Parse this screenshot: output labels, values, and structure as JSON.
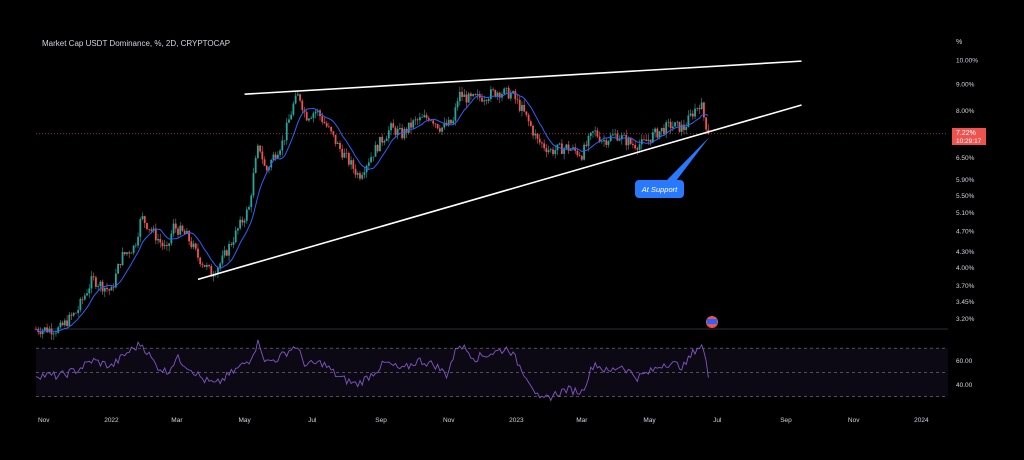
{
  "header": {
    "title": "Market Cap USDT Dominance, %, 2D, CRYPTOCAP",
    "unit": "%"
  },
  "price_tag": {
    "value": "7.22%",
    "countdown": "10:29:17"
  },
  "annotation": {
    "label": "At Support"
  },
  "colors": {
    "background": "#000000",
    "bull": "#26a69a",
    "bear": "#ef5350",
    "ma_line": "#2962ff",
    "rsi_line": "#7e57c2",
    "rsi_band": "#7e57c2",
    "trendline": "#ffffff",
    "price_tag": "#ef5350",
    "callout": "#2979ff"
  },
  "chart_data": [
    {
      "type": "candlestick",
      "title": "Market Cap USDT Dominance, %, 2D, CRYPTOCAP",
      "y_scale": "log",
      "y_ticks": [
        10.0,
        9.0,
        8.0,
        7.22,
        6.5,
        5.9,
        5.5,
        5.1,
        4.7,
        4.3,
        4.0,
        3.7,
        3.45,
        3.2
      ],
      "y_tick_labels": [
        "10.00%",
        "9.00%",
        "8.00%",
        "",
        "6.50%",
        "5.90%",
        "5.50%",
        "5.10%",
        "4.70%",
        "4.30%",
        "4.00%",
        "3.70%",
        "3.45%",
        "3.20%"
      ],
      "x_tick_labels": [
        "Nov",
        "2022",
        "Mar",
        "May",
        "Jul",
        "Sep",
        "Nov",
        "2023",
        "Mar",
        "May",
        "Jul",
        "Sep",
        "Nov",
        "2024"
      ],
      "x_ticks": [
        "2021-11-01",
        "2022-01-01",
        "2022-03-01",
        "2022-05-01",
        "2022-07-01",
        "2022-09-01",
        "2022-11-01",
        "2023-01-01",
        "2023-03-01",
        "2023-05-01",
        "2023-07-01",
        "2023-09-01",
        "2023-11-01",
        "2024-01-01"
      ],
      "x_range": [
        "2021-10-25",
        "2024-01-25"
      ],
      "last_close": 7.22,
      "series": [
        {
          "kind": "close_path",
          "points": [
            [
              "2021-10-25",
              3.05
            ],
            [
              "2021-11-15",
              3.05
            ],
            [
              "2021-12-01",
              3.3
            ],
            [
              "2021-12-15",
              3.8
            ],
            [
              "2022-01-01",
              3.6
            ],
            [
              "2022-01-10",
              4.2
            ],
            [
              "2022-01-22",
              4.4
            ],
            [
              "2022-01-28",
              5.0
            ],
            [
              "2022-02-10",
              4.6
            ],
            [
              "2022-02-20",
              4.3
            ],
            [
              "2022-02-26",
              4.8
            ],
            [
              "2022-03-10",
              4.6
            ],
            [
              "2022-03-20",
              4.2
            ],
            [
              "2022-04-01",
              3.9
            ],
            [
              "2022-04-10",
              4.1
            ],
            [
              "2022-04-22",
              4.6
            ],
            [
              "2022-05-05",
              5.2
            ],
            [
              "2022-05-10",
              6.2
            ],
            [
              "2022-05-14",
              6.9
            ],
            [
              "2022-05-20",
              6.1
            ],
            [
              "2022-05-28",
              6.6
            ],
            [
              "2022-06-05",
              7.0
            ],
            [
              "2022-06-14",
              8.2
            ],
            [
              "2022-06-19",
              8.6
            ],
            [
              "2022-06-25",
              7.8
            ],
            [
              "2022-07-05",
              8.0
            ],
            [
              "2022-07-15",
              7.4
            ],
            [
              "2022-07-25",
              6.8
            ],
            [
              "2022-08-05",
              6.3
            ],
            [
              "2022-08-12",
              6.0
            ],
            [
              "2022-08-20",
              6.4
            ],
            [
              "2022-09-01",
              7.0
            ],
            [
              "2022-09-10",
              7.4
            ],
            [
              "2022-09-20",
              7.2
            ],
            [
              "2022-10-01",
              7.6
            ],
            [
              "2022-10-15",
              7.8
            ],
            [
              "2022-10-25",
              7.4
            ],
            [
              "2022-11-05",
              7.6
            ],
            [
              "2022-11-10",
              8.6
            ],
            [
              "2022-11-20",
              8.4
            ],
            [
              "2022-12-01",
              8.5
            ],
            [
              "2022-12-15",
              8.7
            ],
            [
              "2022-12-28",
              8.6
            ],
            [
              "2023-01-08",
              7.9
            ],
            [
              "2023-01-20",
              7.0
            ],
            [
              "2023-02-01",
              6.7
            ],
            [
              "2023-02-15",
              6.8
            ],
            [
              "2023-03-01",
              6.6
            ],
            [
              "2023-03-12",
              7.3
            ],
            [
              "2023-03-20",
              7.0
            ],
            [
              "2023-04-01",
              7.2
            ],
            [
              "2023-04-15",
              6.9
            ],
            [
              "2023-04-25",
              6.9
            ],
            [
              "2023-05-05",
              7.2
            ],
            [
              "2023-05-20",
              7.5
            ],
            [
              "2023-06-01",
              7.4
            ],
            [
              "2023-06-10",
              8.0
            ],
            [
              "2023-06-16",
              8.3
            ],
            [
              "2023-06-20",
              7.6
            ],
            [
              "2023-06-24",
              7.22
            ]
          ]
        }
      ],
      "trendlines": [
        {
          "name": "",
          "from": [
            "2022-05-01",
            8.6
          ],
          "to": [
            "2023-09-15",
            9.95
          ]
        },
        {
          "name": "",
          "from": [
            "2022-03-20",
            3.8
          ],
          "to": [
            "2023-09-15",
            8.2
          ]
        }
      ]
    },
    {
      "type": "line",
      "title": "",
      "y_ticks": [
        60.0,
        40.0
      ],
      "y_tick_labels": [
        "60.00",
        "40.00"
      ],
      "band": [
        30,
        70
      ],
      "midline": 50,
      "y_range": [
        24,
        80
      ],
      "points": [
        [
          "2021-10-25",
          48
        ],
        [
          "2021-11-15",
          47
        ],
        [
          "2021-12-01",
          52
        ],
        [
          "2021-12-15",
          60
        ],
        [
          "2022-01-01",
          55
        ],
        [
          "2022-01-15",
          66
        ],
        [
          "2022-01-28",
          74
        ],
        [
          "2022-02-10",
          56
        ],
        [
          "2022-02-20",
          50
        ],
        [
          "2022-03-01",
          62
        ],
        [
          "2022-03-15",
          52
        ],
        [
          "2022-03-25",
          44
        ],
        [
          "2022-04-05",
          40
        ],
        [
          "2022-04-20",
          50
        ],
        [
          "2022-05-05",
          60
        ],
        [
          "2022-05-14",
          76
        ],
        [
          "2022-05-20",
          58
        ],
        [
          "2022-06-01",
          62
        ],
        [
          "2022-06-16",
          72
        ],
        [
          "2022-06-25",
          56
        ],
        [
          "2022-07-10",
          58
        ],
        [
          "2022-07-25",
          46
        ],
        [
          "2022-08-10",
          40
        ],
        [
          "2022-08-20",
          46
        ],
        [
          "2022-09-05",
          58
        ],
        [
          "2022-09-20",
          52
        ],
        [
          "2022-10-05",
          60
        ],
        [
          "2022-10-20",
          56
        ],
        [
          "2022-10-30",
          48
        ],
        [
          "2022-11-10",
          74
        ],
        [
          "2022-11-25",
          62
        ],
        [
          "2022-12-10",
          66
        ],
        [
          "2022-12-25",
          70
        ],
        [
          "2023-01-05",
          54
        ],
        [
          "2023-01-15",
          40
        ],
        [
          "2023-01-22",
          26
        ],
        [
          "2023-02-05",
          32
        ],
        [
          "2023-02-15",
          36
        ],
        [
          "2023-03-01",
          34
        ],
        [
          "2023-03-12",
          58
        ],
        [
          "2023-03-25",
          50
        ],
        [
          "2023-04-05",
          56
        ],
        [
          "2023-04-20",
          46
        ],
        [
          "2023-05-01",
          50
        ],
        [
          "2023-05-15",
          58
        ],
        [
          "2023-06-01",
          55
        ],
        [
          "2023-06-12",
          70
        ],
        [
          "2023-06-18",
          72
        ],
        [
          "2023-06-22",
          52
        ],
        [
          "2023-06-24",
          42
        ]
      ]
    }
  ],
  "indicator_badge": {
    "icon": "flag-icon"
  }
}
